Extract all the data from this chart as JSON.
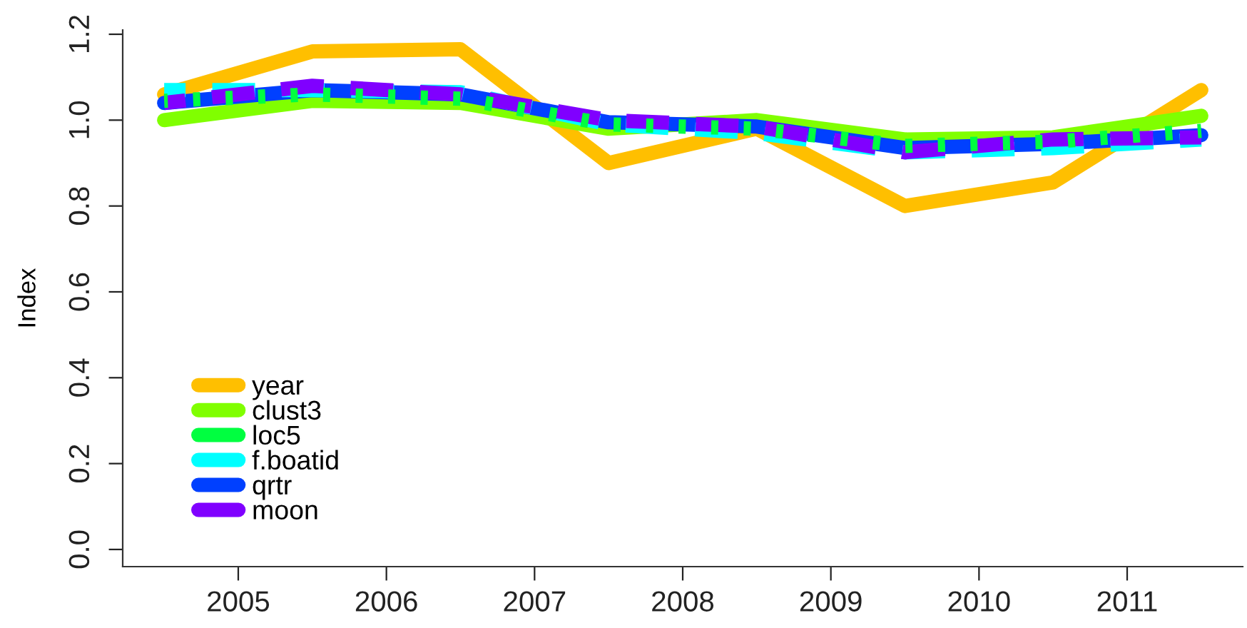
{
  "chart_data": {
    "type": "line",
    "ylabel": "Index",
    "x": [
      2004.5,
      2005.5,
      2006.5,
      2007.5,
      2008.5,
      2009.5,
      2010.5,
      2011.5
    ],
    "xlim": [
      2004.22,
      2011.78
    ],
    "xticks": [
      2005,
      2006,
      2007,
      2008,
      2009,
      2010,
      2011
    ],
    "ylim": [
      -0.04,
      1.21
    ],
    "yticks": [
      {
        "value": 0,
        "label": "0.0"
      },
      {
        "value": 0.2,
        "label": "0.2"
      },
      {
        "value": 0.4,
        "label": "0.4"
      },
      {
        "value": 0.6,
        "label": "0.6"
      },
      {
        "value": 0.8,
        "label": "0.8"
      },
      {
        "value": 1.0,
        "label": "1.0"
      },
      {
        "value": 1.2,
        "label": "1.2"
      }
    ],
    "series": [
      {
        "name": "year",
        "color": "#ffbf00",
        "line_style": "solid",
        "values": [
          1.06,
          1.16,
          1.165,
          0.9,
          0.98,
          0.8,
          0.855,
          1.07
        ]
      },
      {
        "name": "clust3",
        "color": "#80ff00",
        "line_style": "solid",
        "values": [
          1.0,
          1.045,
          1.04,
          0.98,
          1.0,
          0.955,
          0.96,
          1.01
        ]
      },
      {
        "name": "loc5",
        "color": "#00ff40",
        "line_style": "dotted",
        "values": [
          1.045,
          1.06,
          1.05,
          0.99,
          0.98,
          0.94,
          0.95,
          0.975
        ]
      },
      {
        "name": "f.boatid",
        "color": "#00ffff",
        "line_style": "dashed",
        "values": [
          1.07,
          1.07,
          1.065,
          0.99,
          0.97,
          0.925,
          0.935,
          0.955
        ]
      },
      {
        "name": "qrtr",
        "color": "#0040ff",
        "line_style": "solid",
        "values": [
          1.04,
          1.07,
          1.06,
          0.995,
          0.985,
          0.935,
          0.945,
          0.965
        ]
      },
      {
        "name": "moon",
        "color": "#8000ff",
        "line_style": "dashed",
        "values": [
          1.04,
          1.08,
          1.06,
          1.0,
          0.985,
          0.925,
          0.955,
          0.96
        ]
      }
    ],
    "grid": false,
    "legend": "bottom left",
    "marker": "none"
  }
}
